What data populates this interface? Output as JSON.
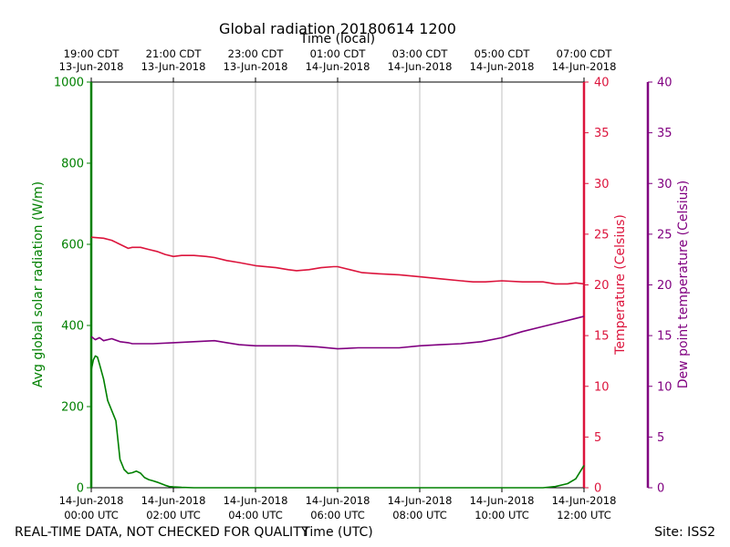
{
  "chart_data": {
    "type": "line",
    "title": "Global radiation 20180614 1200",
    "top_xlabel": "Time (local)",
    "xlabel": "Time (UTC)",
    "footer_left": "REAL-TIME DATA, NOT CHECKED FOR QUALITY",
    "footer_right": "Site: ISS2",
    "x_range_hours": [
      0,
      12
    ],
    "grid": "vertical",
    "bottom_ticks": [
      {
        "hour": 0,
        "date": "14-Jun-2018",
        "time": "00:00 UTC"
      },
      {
        "hour": 2,
        "date": "14-Jun-2018",
        "time": "02:00 UTC"
      },
      {
        "hour": 4,
        "date": "14-Jun-2018",
        "time": "04:00 UTC"
      },
      {
        "hour": 6,
        "date": "14-Jun-2018",
        "time": "06:00 UTC"
      },
      {
        "hour": 8,
        "date": "14-Jun-2018",
        "time": "08:00 UTC"
      },
      {
        "hour": 10,
        "date": "14-Jun-2018",
        "time": "10:00 UTC"
      },
      {
        "hour": 12,
        "date": "14-Jun-2018",
        "time": "12:00 UTC"
      }
    ],
    "top_ticks": [
      {
        "hour": 0,
        "time": "19:00 CDT",
        "date": "13-Jun-2018"
      },
      {
        "hour": 2,
        "time": "21:00 CDT",
        "date": "13-Jun-2018"
      },
      {
        "hour": 4,
        "time": "23:00 CDT",
        "date": "13-Jun-2018"
      },
      {
        "hour": 6,
        "time": "01:00 CDT",
        "date": "14-Jun-2018"
      },
      {
        "hour": 8,
        "time": "03:00 CDT",
        "date": "14-Jun-2018"
      },
      {
        "hour": 10,
        "time": "05:00 CDT",
        "date": "14-Jun-2018"
      },
      {
        "hour": 12,
        "time": "07:00 CDT",
        "date": "14-Jun-2018"
      }
    ],
    "axes": {
      "left": {
        "label": "Avg global solar radiation (W/m)",
        "ylim": [
          0,
          1000
        ],
        "ticks": [
          0,
          200,
          400,
          600,
          800,
          1000
        ],
        "color": "#008000"
      },
      "right": {
        "label": "Temperature (Celsius)",
        "ylim": [
          0,
          40
        ],
        "ticks": [
          0,
          5,
          10,
          15,
          20,
          25,
          30,
          35,
          40
        ],
        "color": "#dc143c"
      },
      "right2": {
        "label": "Dew point temperature (Celsius)",
        "ylim": [
          0,
          40
        ],
        "ticks": [
          0,
          5,
          10,
          15,
          20,
          25,
          30,
          35,
          40
        ],
        "color": "#800080"
      }
    },
    "series": [
      {
        "name": "Avg global solar radiation",
        "axis": "left",
        "color": "#008000",
        "x": [
          0,
          0.05,
          0.1,
          0.15,
          0.2,
          0.3,
          0.4,
          0.5,
          0.6,
          0.7,
          0.8,
          0.9,
          1.0,
          1.1,
          1.2,
          1.3,
          1.4,
          1.5,
          1.6,
          1.8,
          1.9,
          2.0,
          2.2,
          2.5,
          3,
          4,
          5,
          6,
          7,
          8,
          9,
          10,
          10.5,
          11.0,
          11.3,
          11.6,
          11.8,
          12.0
        ],
        "y": [
          290,
          315,
          325,
          322,
          305,
          268,
          215,
          190,
          165,
          70,
          45,
          35,
          37,
          41,
          36,
          25,
          20,
          17,
          14,
          6,
          3,
          2,
          1,
          0,
          0,
          0,
          0,
          0,
          0,
          0,
          0,
          0,
          0,
          0,
          3,
          10,
          22,
          55
        ]
      },
      {
        "name": "Temperature",
        "axis": "right",
        "color": "#dc143c",
        "x": [
          0,
          0.3,
          0.5,
          0.7,
          0.9,
          1.0,
          1.2,
          1.4,
          1.6,
          1.8,
          2.0,
          2.2,
          2.5,
          2.8,
          3.0,
          3.3,
          3.6,
          4.0,
          4.5,
          4.8,
          5.0,
          5.3,
          5.6,
          5.9,
          6.0,
          6.3,
          6.6,
          7.0,
          7.5,
          8.0,
          8.5,
          9.0,
          9.3,
          9.6,
          10.0,
          10.5,
          11.0,
          11.3,
          11.6,
          11.8,
          12.0
        ],
        "y": [
          24.7,
          24.6,
          24.4,
          24.0,
          23.6,
          23.7,
          23.7,
          23.5,
          23.3,
          23.0,
          22.8,
          22.9,
          22.9,
          22.8,
          22.7,
          22.4,
          22.2,
          21.9,
          21.7,
          21.5,
          21.4,
          21.5,
          21.7,
          21.8,
          21.8,
          21.5,
          21.2,
          21.1,
          21.0,
          20.8,
          20.6,
          20.4,
          20.3,
          20.3,
          20.4,
          20.3,
          20.3,
          20.1,
          20.1,
          20.2,
          20.1
        ]
      },
      {
        "name": "Dew point temperature",
        "axis": "right2",
        "color": "#800080",
        "x": [
          0,
          0.1,
          0.2,
          0.3,
          0.5,
          0.7,
          0.9,
          1.0,
          1.5,
          2.0,
          2.5,
          3.0,
          3.3,
          3.6,
          4.0,
          4.5,
          5.0,
          5.5,
          6.0,
          6.5,
          7.0,
          7.5,
          8.0,
          8.5,
          9.0,
          9.5,
          10.0,
          10.5,
          11.0,
          11.5,
          12.0
        ],
        "y": [
          14.9,
          14.6,
          14.8,
          14.5,
          14.7,
          14.4,
          14.3,
          14.2,
          14.2,
          14.3,
          14.4,
          14.5,
          14.3,
          14.1,
          14.0,
          14.0,
          14.0,
          13.9,
          13.7,
          13.8,
          13.8,
          13.8,
          14.0,
          14.1,
          14.2,
          14.4,
          14.8,
          15.4,
          15.9,
          16.4,
          16.9
        ]
      }
    ]
  }
}
